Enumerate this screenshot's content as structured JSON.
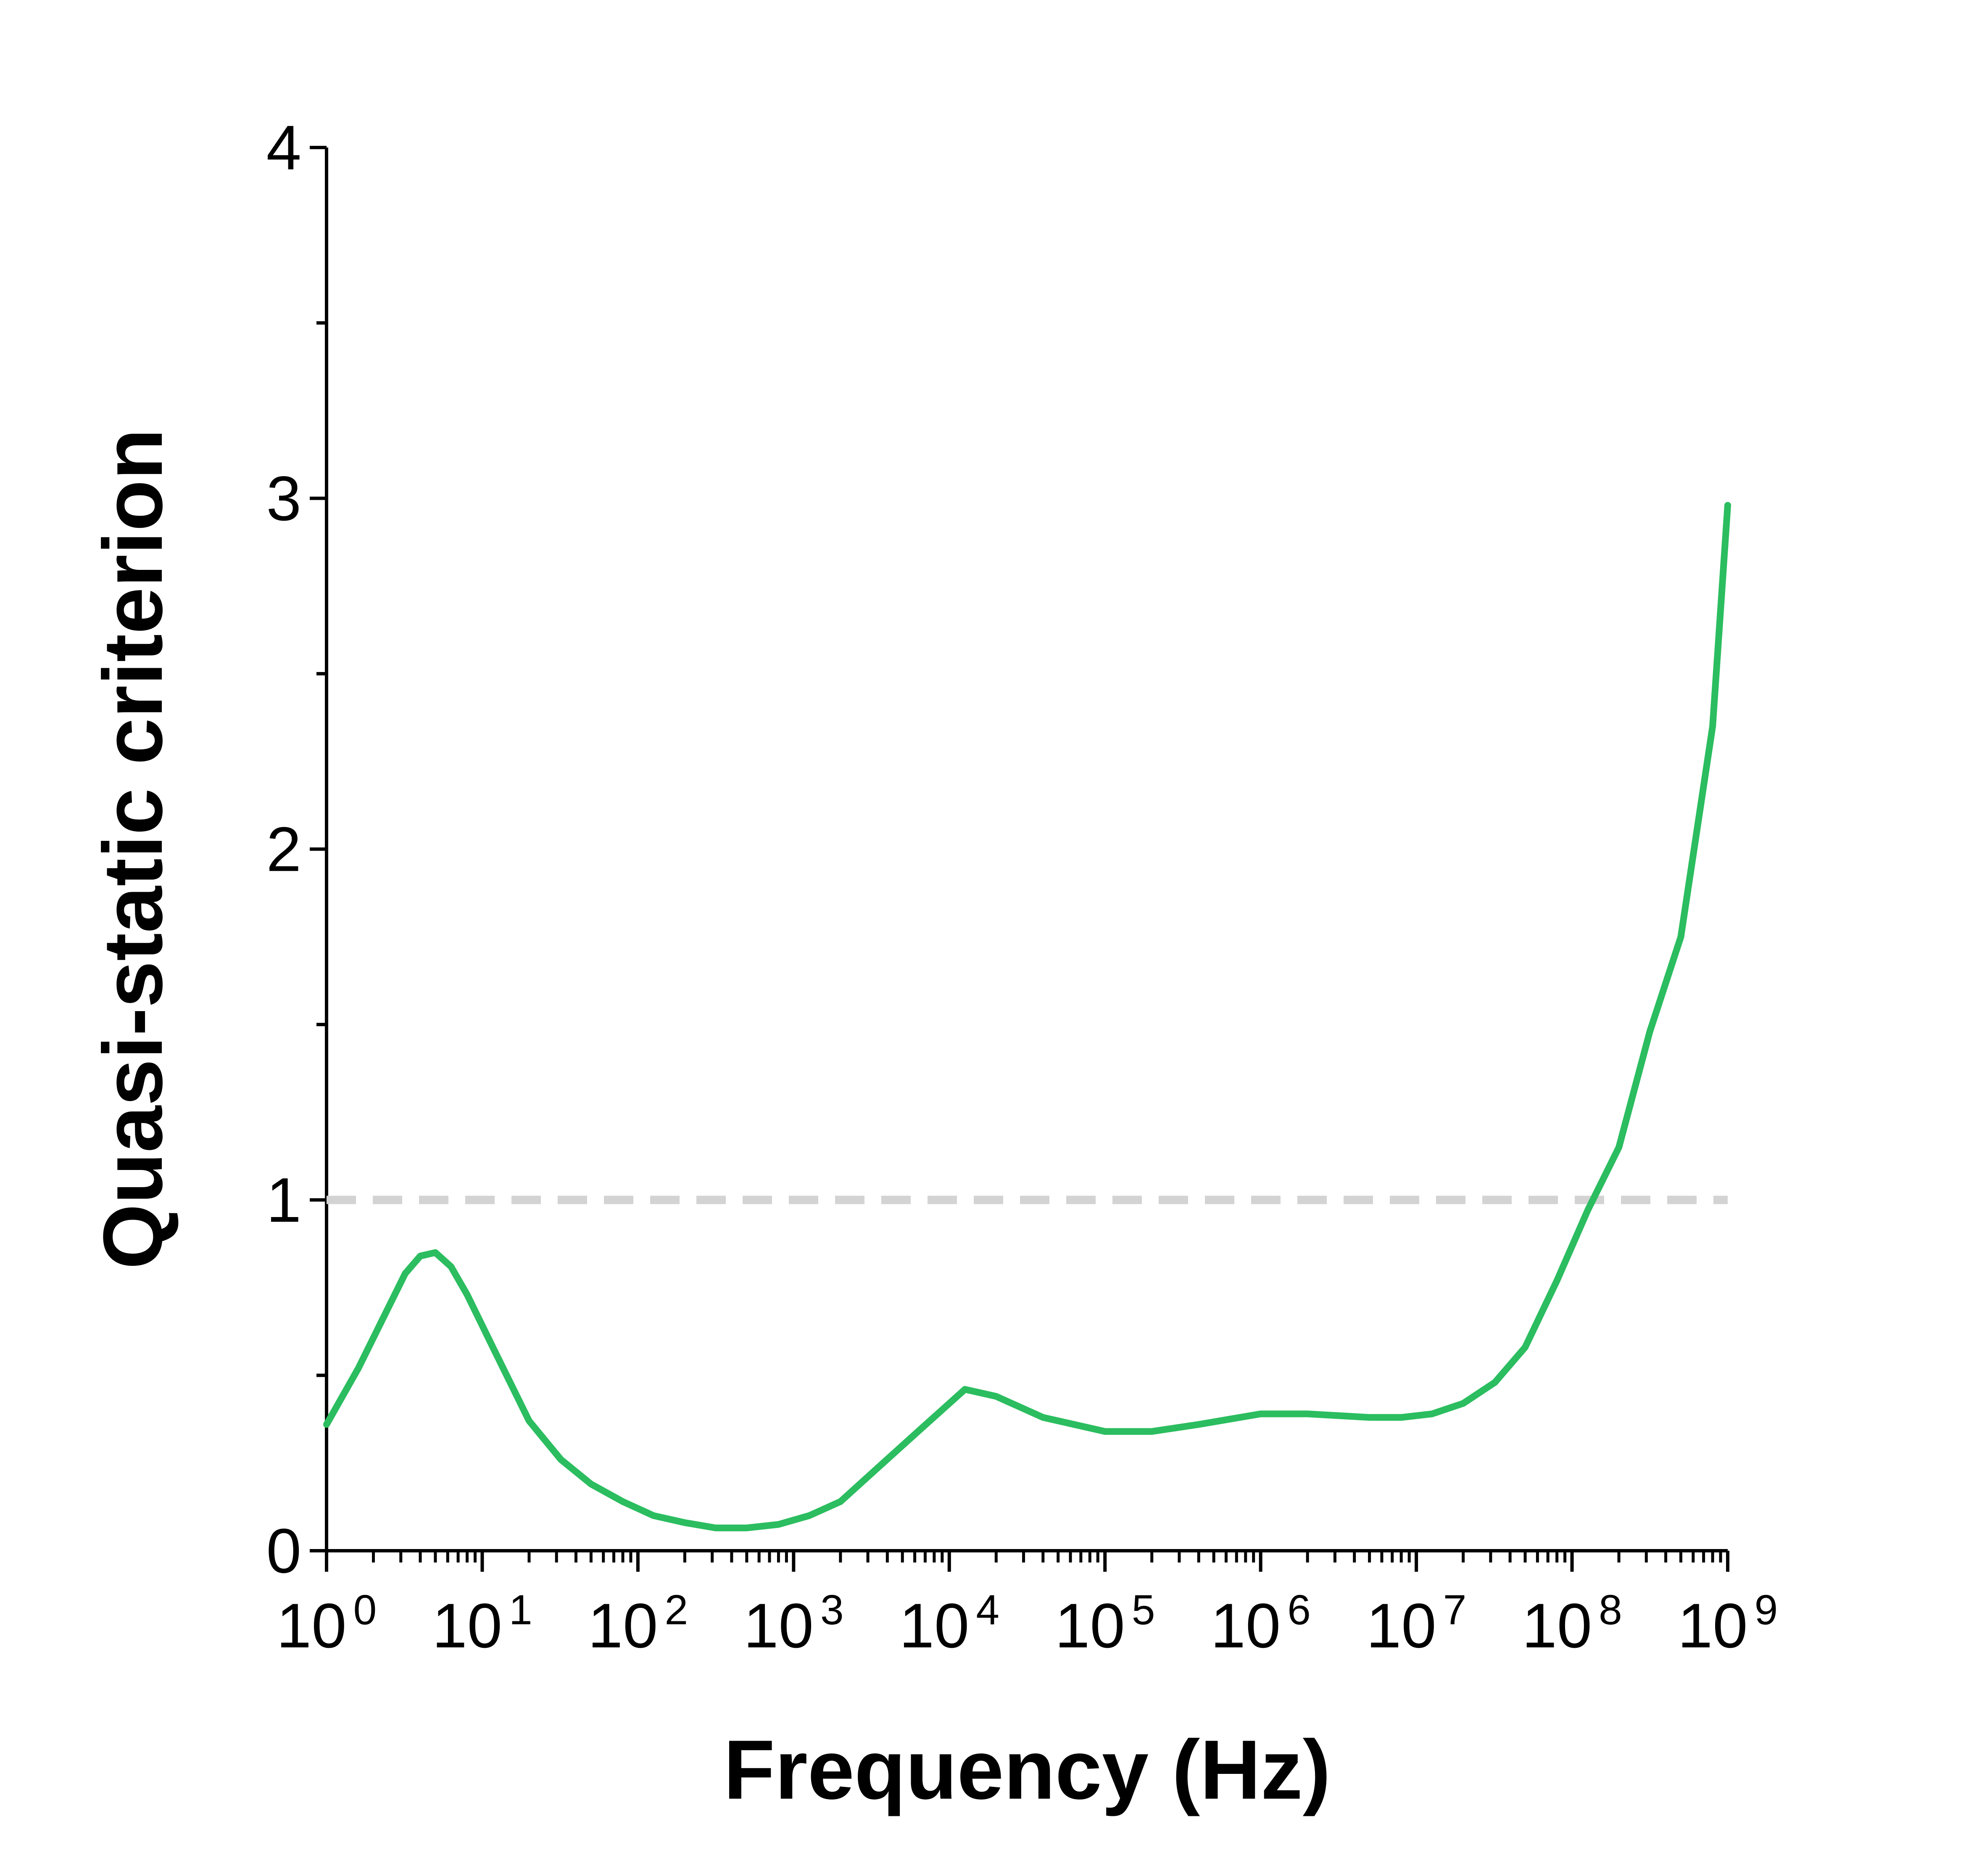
{
  "chart_data": {
    "type": "line",
    "title": "",
    "xlabel": "Frequency (Hz)",
    "ylabel": "Quasi-static criterion",
    "x_scale": "log",
    "xlim": [
      1,
      1000000000
    ],
    "ylim": [
      0,
      4
    ],
    "y_ticks": [
      "0",
      "1",
      "2",
      "3",
      "4"
    ],
    "x_ticks": [
      {
        "base": "10",
        "exp": "0"
      },
      {
        "base": "10",
        "exp": "1"
      },
      {
        "base": "10",
        "exp": "2"
      },
      {
        "base": "10",
        "exp": "3"
      },
      {
        "base": "10",
        "exp": "4"
      },
      {
        "base": "10",
        "exp": "5"
      },
      {
        "base": "10",
        "exp": "6"
      },
      {
        "base": "10",
        "exp": "7"
      },
      {
        "base": "10",
        "exp": "8"
      },
      {
        "base": "10",
        "exp": "9"
      }
    ],
    "grid": false,
    "reference_line": {
      "y": 1,
      "style": "dashed",
      "color": "#d3d3d3"
    },
    "series": [
      {
        "color": "#2bbd5f",
        "points": [
          [
            1,
            0.36
          ],
          [
            1.6,
            0.52
          ],
          [
            3.2,
            0.79
          ],
          [
            4,
            0.84
          ],
          [
            5,
            0.85
          ],
          [
            6.3,
            0.81
          ],
          [
            8,
            0.73
          ],
          [
            12,
            0.57
          ],
          [
            20,
            0.37
          ],
          [
            32,
            0.26
          ],
          [
            50,
            0.19
          ],
          [
            80,
            0.14
          ],
          [
            126,
            0.1
          ],
          [
            200,
            0.08
          ],
          [
            316,
            0.065
          ],
          [
            500,
            0.065
          ],
          [
            800,
            0.075
          ],
          [
            1260,
            0.1
          ],
          [
            2000,
            0.14
          ],
          [
            3160,
            0.22
          ],
          [
            6300,
            0.34
          ],
          [
            10000,
            0.42
          ],
          [
            12600,
            0.46
          ],
          [
            20000,
            0.44
          ],
          [
            40000,
            0.38
          ],
          [
            100000,
            0.34
          ],
          [
            200000,
            0.34
          ],
          [
            400000,
            0.36
          ],
          [
            1000000,
            0.39
          ],
          [
            2000000,
            0.39
          ],
          [
            5000000,
            0.38
          ],
          [
            8000000,
            0.38
          ],
          [
            12600000,
            0.39
          ],
          [
            20000000,
            0.42
          ],
          [
            32000000,
            0.48
          ],
          [
            50000000,
            0.58
          ],
          [
            80000000,
            0.77
          ],
          [
            126000000,
            0.97
          ],
          [
            200000000,
            1.15
          ],
          [
            316000000,
            1.48
          ],
          [
            500000000,
            1.75
          ],
          [
            800000000,
            2.35
          ],
          [
            1000000000,
            2.98
          ]
        ]
      }
    ]
  }
}
